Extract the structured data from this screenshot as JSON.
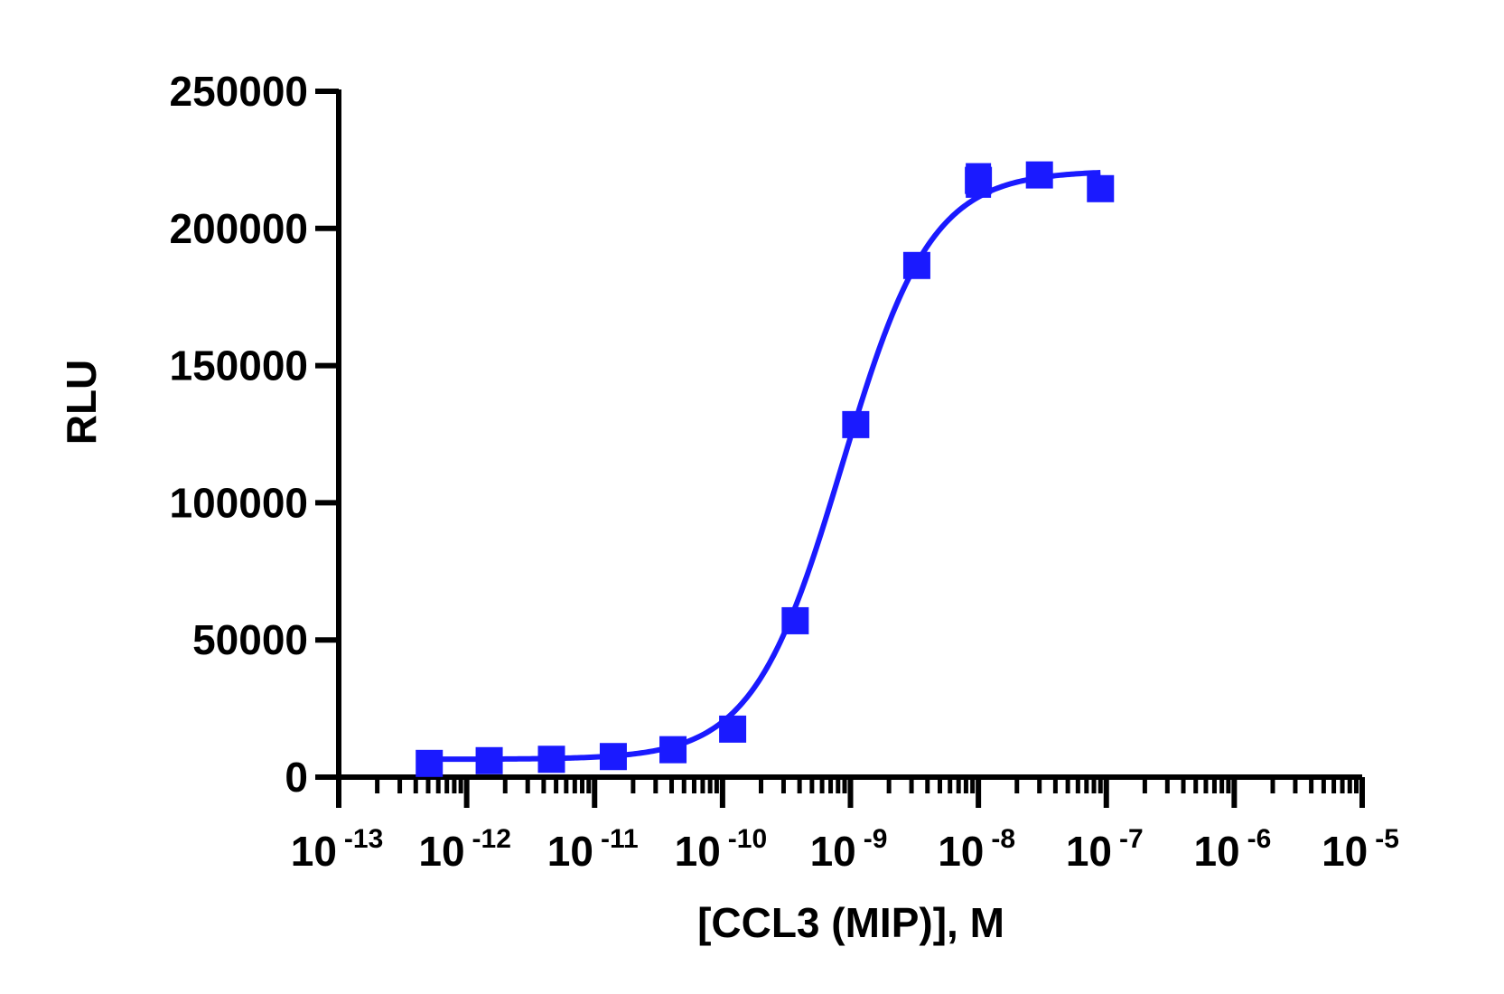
{
  "chart_data": {
    "type": "scatter",
    "title": "",
    "xlabel": "[CCL3 (MIP)],  M",
    "ylabel": "RLU",
    "xscale": "log",
    "xlim": [
      1e-13,
      1e-05
    ],
    "ylim": [
      0,
      250000
    ],
    "grid": false,
    "legend": "none",
    "y_ticks": [
      "0",
      "50000",
      "100000",
      "150000",
      "200000",
      "250000"
    ],
    "y_tick_values": [
      0,
      50000,
      100000,
      150000,
      200000,
      250000
    ],
    "x_ticks": [
      {
        "base": "10",
        "exp": "-13",
        "value": 1e-13
      },
      {
        "base": "10",
        "exp": "-12",
        "value": 1e-12
      },
      {
        "base": "10",
        "exp": "-11",
        "value": 1e-11
      },
      {
        "base": "10",
        "exp": "-10",
        "value": 1e-10
      },
      {
        "base": "10",
        "exp": "-9",
        "value": 1e-09
      },
      {
        "base": "10",
        "exp": "-8",
        "value": 1e-08
      },
      {
        "base": "10",
        "exp": "-7",
        "value": 1e-07
      },
      {
        "base": "10",
        "exp": "-6",
        "value": 1e-06
      },
      {
        "base": "10",
        "exp": "-5",
        "value": 1e-05
      }
    ],
    "series": [
      {
        "color": "#1a1aff",
        "marker": "square",
        "x": [
          5.1e-13,
          1.5e-12,
          4.6e-12,
          1.4e-11,
          4.1e-11,
          1.2e-10,
          3.7e-10,
          1.1e-09,
          3.3e-09,
          1e-08,
          3e-08,
          9e-08
        ],
        "y": [
          5000,
          6000,
          6500,
          7500,
          10000,
          17500,
          57000,
          128500,
          186500,
          217500,
          219500,
          214500
        ],
        "error": [
          0,
          0,
          0,
          0,
          0,
          0,
          0,
          0,
          3500,
          5500,
          1500,
          0
        ],
        "fit": {
          "model": "4PL",
          "bottom": 6500,
          "top": 221000,
          "ec50": 8.6e-10,
          "hill": 1.25
        }
      }
    ]
  }
}
